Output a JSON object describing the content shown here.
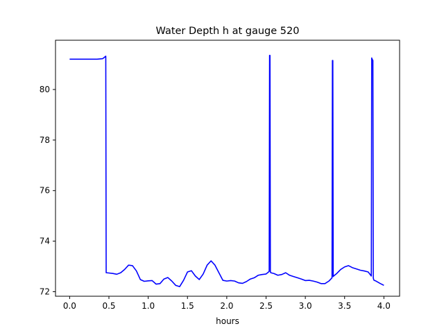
{
  "chart_data": {
    "type": "line",
    "title": "Water Depth h at gauge 520",
    "xlabel": "hours",
    "ylabel": "",
    "xlim": [
      -0.18,
      4.2
    ],
    "ylim": [
      71.82,
      81.95
    ],
    "xticks": [
      0.0,
      0.5,
      1.0,
      1.5,
      2.0,
      2.5,
      3.0,
      3.5,
      4.0
    ],
    "xtick_labels": [
      "0.0",
      "0.5",
      "1.0",
      "1.5",
      "2.0",
      "2.5",
      "3.0",
      "3.5",
      "4.0"
    ],
    "yticks": [
      72,
      74,
      76,
      78,
      80
    ],
    "ytick_labels": [
      "72",
      "74",
      "76",
      "78",
      "80"
    ],
    "grid": false,
    "line_color": "#0000ff",
    "series": [
      {
        "name": "",
        "x": [
          0.0,
          0.1,
          0.2,
          0.3,
          0.35,
          0.42,
          0.46,
          0.465,
          0.5,
          0.55,
          0.6,
          0.65,
          0.7,
          0.75,
          0.8,
          0.85,
          0.9,
          0.95,
          1.0,
          1.05,
          1.1,
          1.15,
          1.2,
          1.25,
          1.3,
          1.35,
          1.4,
          1.45,
          1.5,
          1.55,
          1.6,
          1.65,
          1.7,
          1.75,
          1.8,
          1.85,
          1.9,
          1.95,
          2.0,
          2.05,
          2.1,
          2.15,
          2.2,
          2.25,
          2.3,
          2.35,
          2.4,
          2.45,
          2.5,
          2.54,
          2.545,
          2.55,
          2.555,
          2.56,
          2.6,
          2.65,
          2.7,
          2.75,
          2.8,
          2.85,
          2.9,
          2.95,
          3.0,
          3.05,
          3.1,
          3.15,
          3.2,
          3.25,
          3.3,
          3.34,
          3.345,
          3.35,
          3.355,
          3.36,
          3.4,
          3.45,
          3.5,
          3.55,
          3.6,
          3.65,
          3.7,
          3.75,
          3.8,
          3.84,
          3.845,
          3.85,
          3.86,
          3.865,
          3.87,
          3.875,
          3.9,
          3.95,
          4.0
        ],
        "y": [
          81.2,
          81.2,
          81.2,
          81.2,
          81.2,
          81.22,
          81.32,
          72.75,
          72.74,
          72.72,
          72.69,
          72.75,
          72.88,
          73.05,
          73.03,
          72.82,
          72.48,
          72.41,
          72.43,
          72.44,
          72.3,
          72.32,
          72.5,
          72.56,
          72.42,
          72.25,
          72.2,
          72.45,
          72.78,
          72.83,
          72.62,
          72.48,
          72.7,
          73.05,
          73.22,
          73.05,
          72.75,
          72.45,
          72.42,
          72.44,
          72.42,
          72.35,
          72.33,
          72.4,
          72.5,
          72.55,
          72.65,
          72.68,
          72.7,
          72.8,
          81.35,
          81.35,
          72.8,
          72.75,
          72.72,
          72.65,
          72.68,
          72.75,
          72.65,
          72.6,
          72.55,
          72.5,
          72.44,
          72.45,
          72.42,
          72.38,
          72.32,
          72.32,
          72.42,
          72.55,
          81.15,
          81.15,
          72.6,
          72.62,
          72.72,
          72.88,
          72.98,
          73.03,
          72.95,
          72.9,
          72.85,
          72.82,
          72.78,
          72.62,
          81.25,
          81.2,
          81.15,
          72.55,
          72.48,
          72.45,
          72.42,
          72.33,
          72.25
        ]
      }
    ]
  }
}
